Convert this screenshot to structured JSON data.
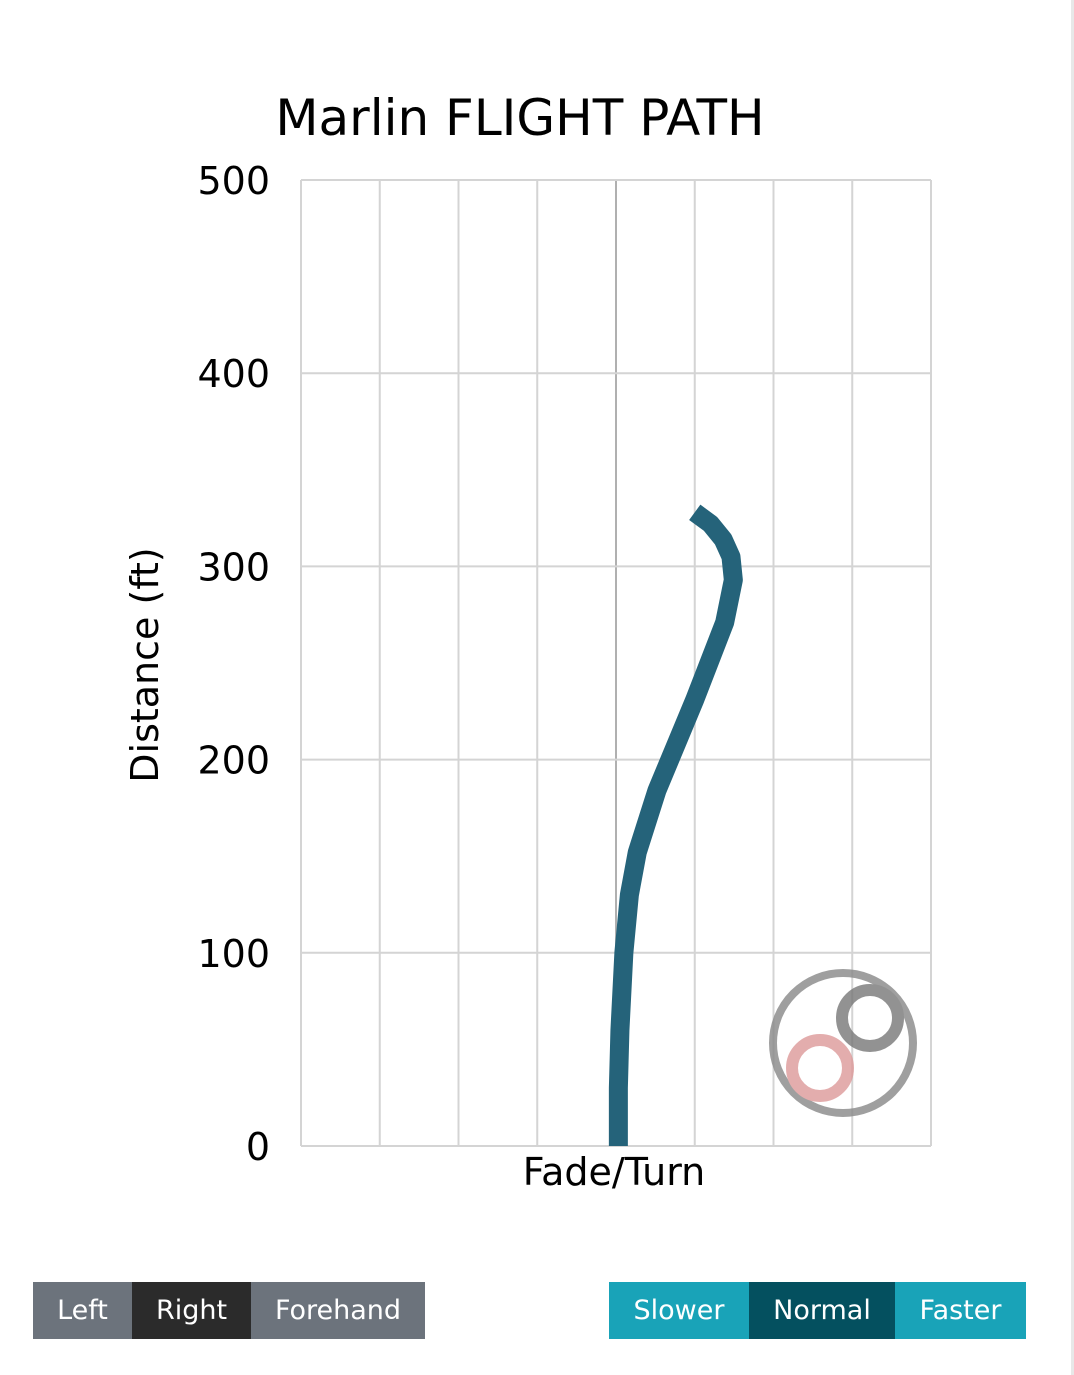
{
  "chart_data": {
    "type": "line",
    "title": "Marlin FLIGHT PATH",
    "xlabel": "Fade/Turn",
    "ylabel": "Distance (ft)",
    "xlim": [
      -4,
      4
    ],
    "ylim": [
      0,
      500
    ],
    "yticks": [
      "0",
      "100",
      "200",
      "300",
      "400",
      "500"
    ],
    "grid": true,
    "series": [
      {
        "color": "#25637a",
        "points": [
          [
            0.03,
            0
          ],
          [
            0.03,
            30
          ],
          [
            0.05,
            60
          ],
          [
            0.1,
            100
          ],
          [
            0.17,
            130
          ],
          [
            0.27,
            152
          ],
          [
            0.52,
            184
          ],
          [
            1.0,
            231
          ],
          [
            1.38,
            271
          ],
          [
            1.49,
            293
          ],
          [
            1.46,
            305
          ],
          [
            1.36,
            314
          ],
          [
            1.2,
            322
          ],
          [
            1.0,
            328
          ]
        ]
      }
    ]
  },
  "controls": {
    "hand": {
      "options": [
        "Left",
        "Right",
        "Forehand"
      ],
      "selected": "Right"
    },
    "speed": {
      "options": [
        "Slower",
        "Normal",
        "Faster"
      ],
      "selected": "Normal"
    }
  },
  "colors": {
    "hand_bg": "#6c737c",
    "hand_active": "#2b2b2b",
    "speed_bg": "#19a3b8",
    "speed_active": "#04505f"
  }
}
